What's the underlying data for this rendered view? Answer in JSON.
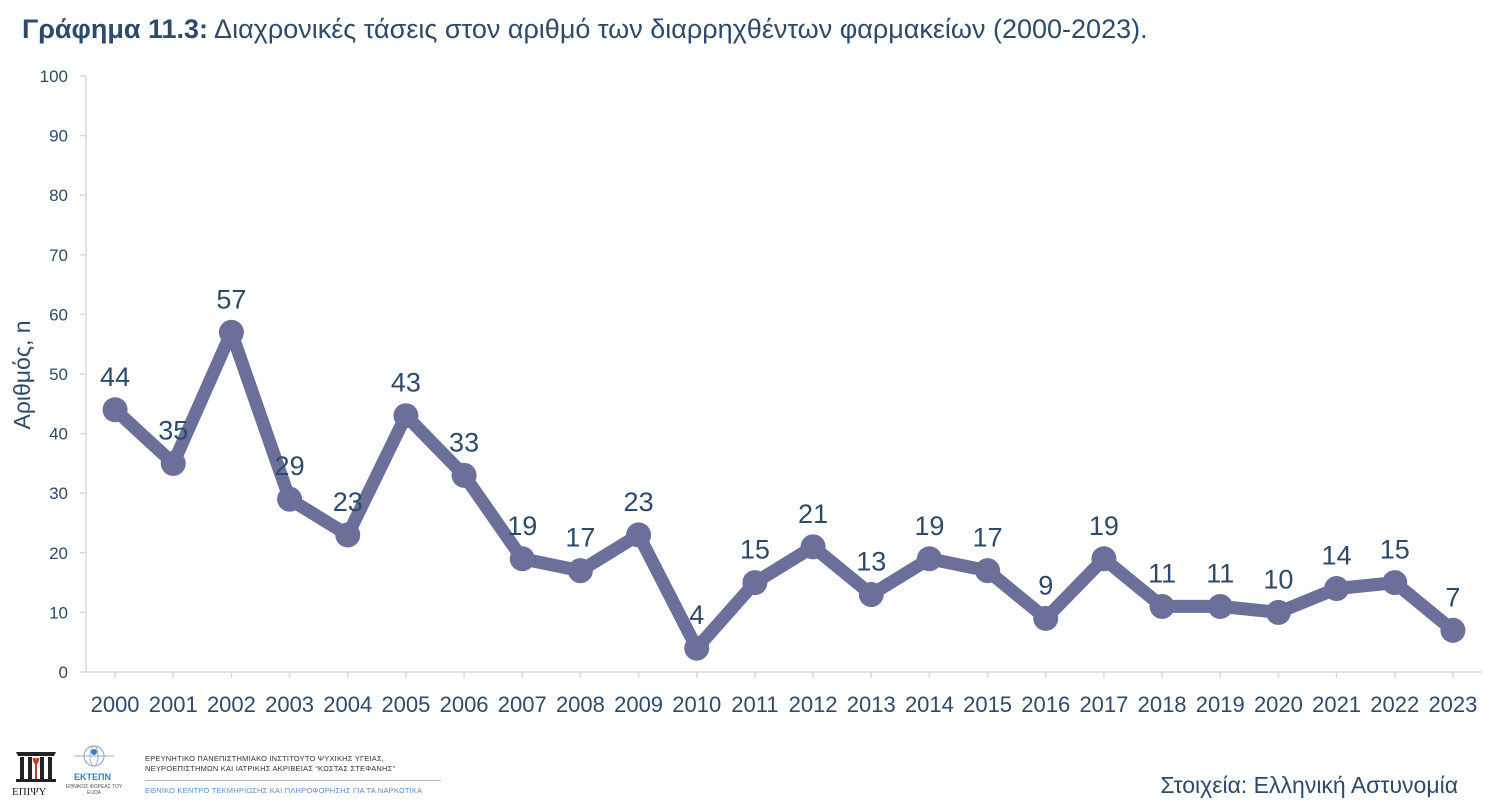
{
  "title": {
    "bold": "Γράφημα 11.3:",
    "text": "Διαχρονικές τάσεις στον αριθμό των διαρρηχθέντων φαρμακείων (2000-2023)."
  },
  "chart_data": {
    "type": "line",
    "title": "Γράφημα 11.3: Διαχρονικές τάσεις στον αριθμό των διαρρηχθέντων φαρμακείων (2000-2023).",
    "xlabel": "",
    "ylabel": "Αριθμός, n",
    "ylim": [
      0,
      100
    ],
    "yticks": [
      0,
      10,
      20,
      30,
      40,
      50,
      60,
      70,
      80,
      90,
      100
    ],
    "grid": false,
    "categories": [
      "2000",
      "2001",
      "2002",
      "2003",
      "2004",
      "2005",
      "2006",
      "2007",
      "2008",
      "2009",
      "2010",
      "2011",
      "2012",
      "2013",
      "2014",
      "2015",
      "2016",
      "2017",
      "2018",
      "2019",
      "2020",
      "2021",
      "2022",
      "2023"
    ],
    "series": [
      {
        "values": [
          44,
          35,
          57,
          29,
          23,
          43,
          33,
          19,
          17,
          23,
          4,
          15,
          21,
          13,
          19,
          17,
          9,
          19,
          11,
          11,
          10,
          14,
          15,
          7
        ],
        "color": "#6B6F9A"
      }
    ],
    "data_labels": true
  },
  "footer": {
    "institute_line1": "ΕΡΕΥΝΗΤΙΚΟ ΠΑΝΕΠΙΣΤΗΜΙΑΚΟ ΙΝΣΤΙΤΟΥΤΟ ΨΥΧΙΚΗΣ ΥΓΕΙΑΣ,",
    "institute_line2": "ΝΕΥΡΟΕΠΙΣΤΗΜΩΝ ΚΑΙ ΙΑΤΡΙΚΗΣ ΑΚΡΙΒΕΙΑΣ “ΚΩΣΤΑΣ ΣΤΕΦΑΝΗΣ”",
    "centre_line": "ΕΘΝΙΚΟ ΚΕΝΤΡΟ ΤΕΚΜΗΡΙΩΣΗΣ ΚΑΙ ΠΛΗΡΟΦΟΡΗΣΗΣ ΓΙΑ ΤΑ ΝΑΡΚΩΤΙΚΑ",
    "logo_epipsy": "ΕΠΙΨΥ",
    "logo_ektepn": "ΕΚΤΕΠΝ",
    "logo_ektepn_sub": "ΕΘΝΙΚΟΣ ΦΟΡΕΑΣ ΤΟΥ EUDA",
    "source": "Στοιχεία: Ελληνική Αστυνομία"
  },
  "colors": {
    "line": "#6B6F9A",
    "text": "#2E4A6B",
    "axis": "#D9D9D9"
  }
}
